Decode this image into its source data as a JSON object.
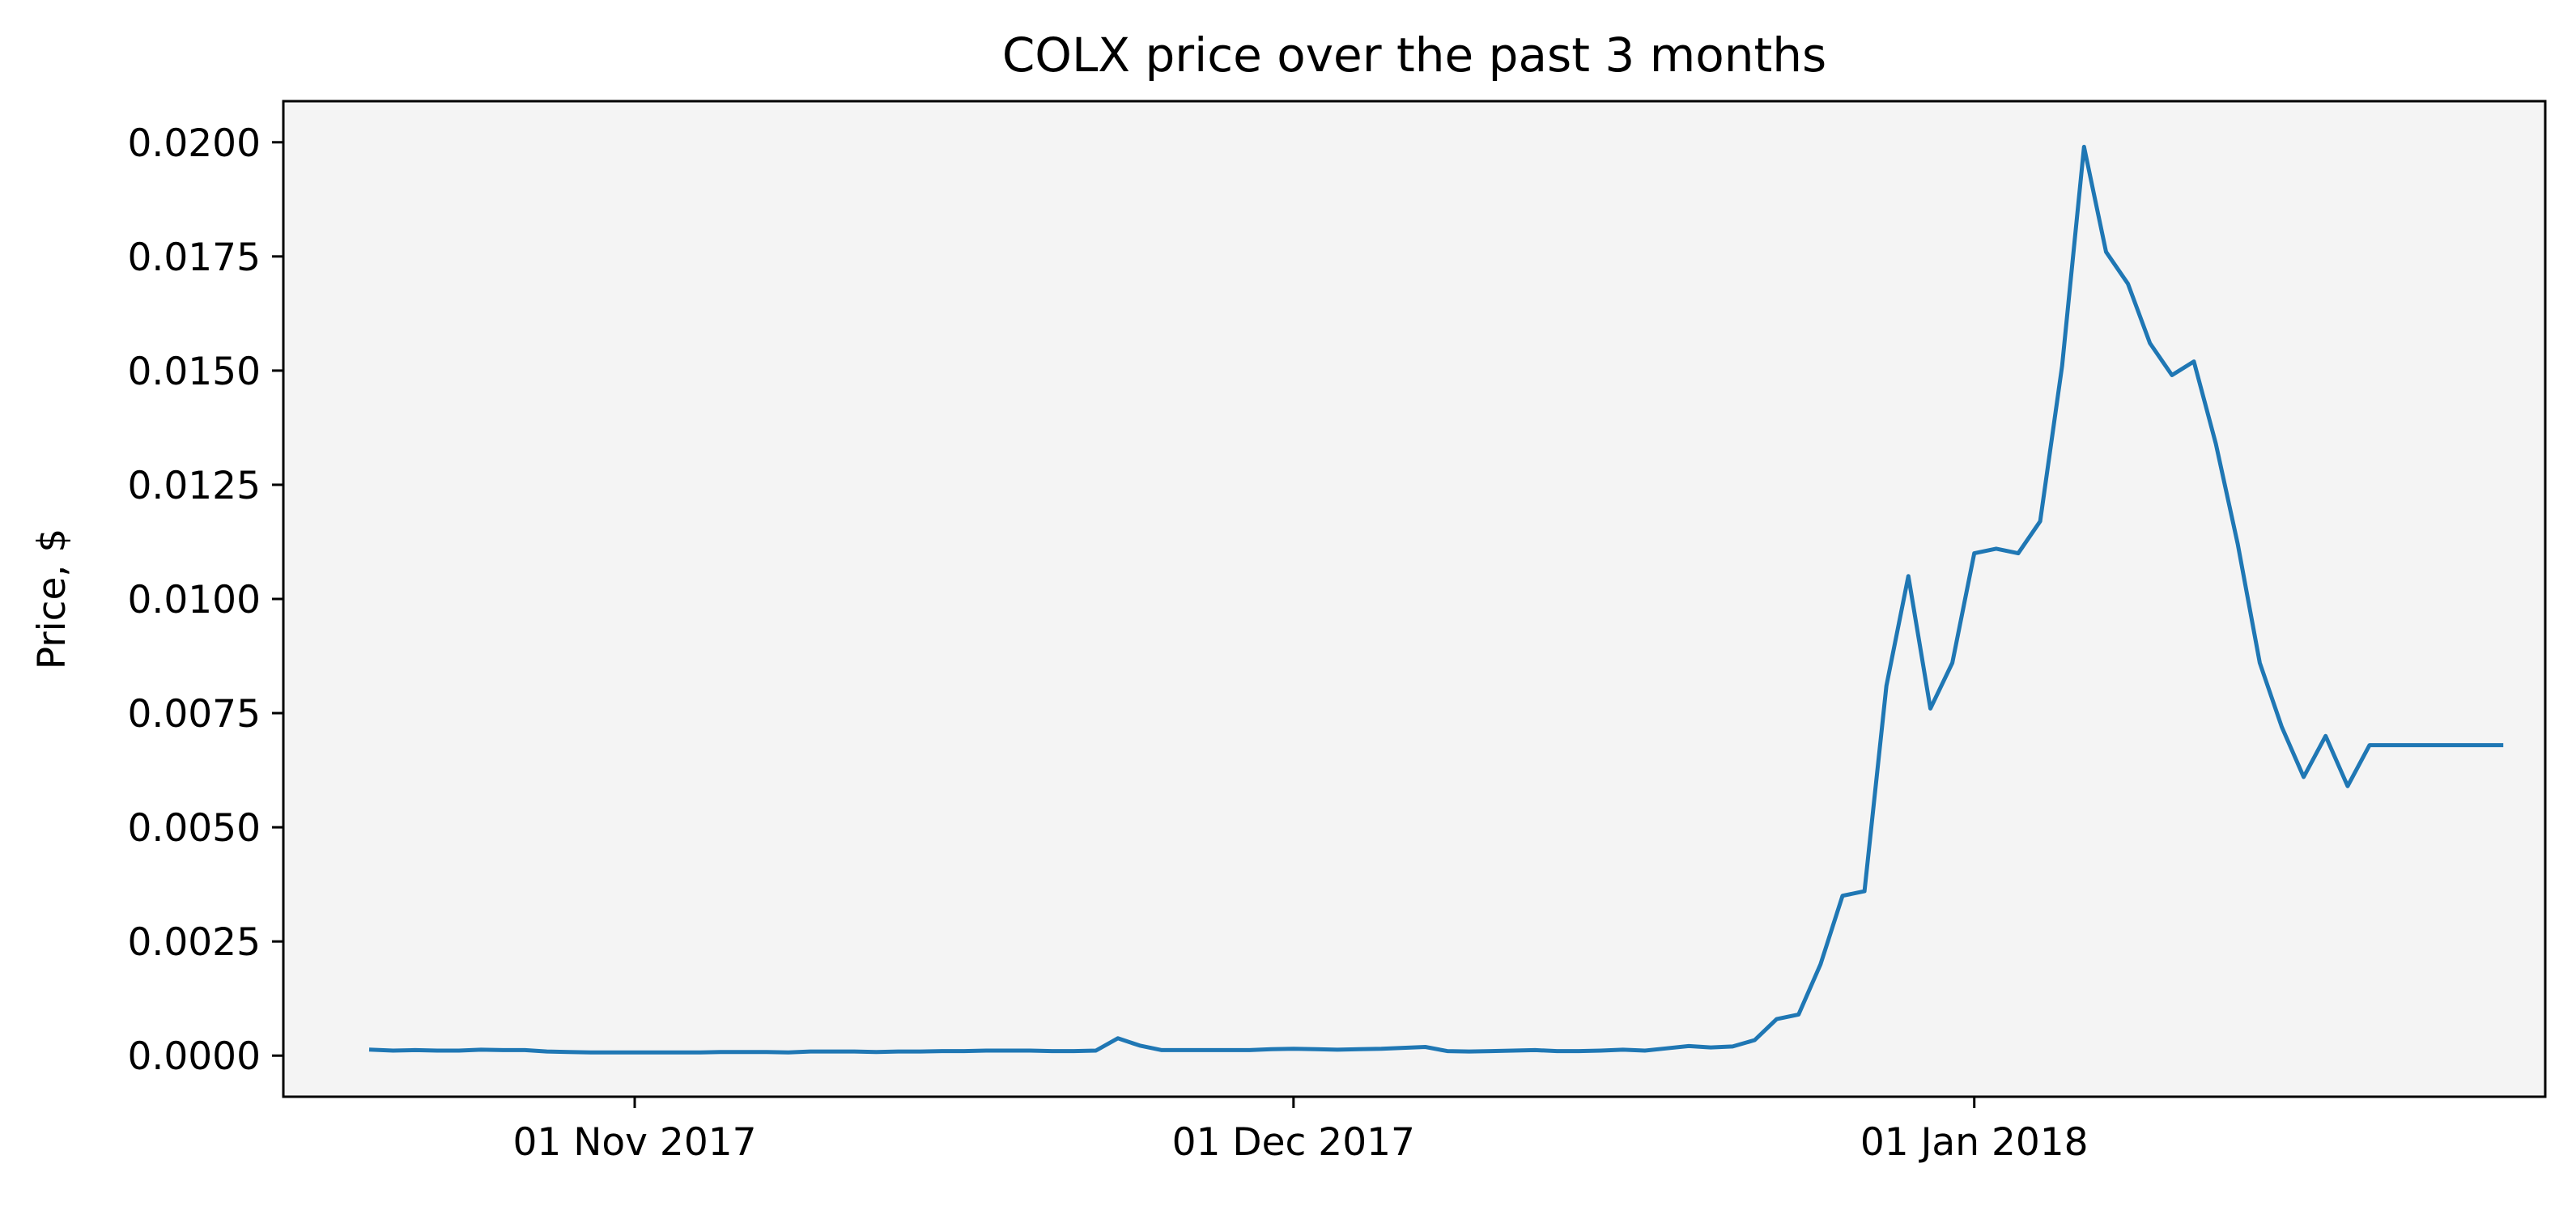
{
  "chart_data": {
    "type": "line",
    "title": "COLX price over the past 3 months",
    "xlabel": "",
    "ylabel": "Price, $",
    "x_tick_labels": [
      "01 Nov 2017",
      "01 Dec 2017",
      "01 Jan 2018"
    ],
    "y_tick_labels": [
      "0.0000",
      "0.0025",
      "0.0050",
      "0.0075",
      "0.0100",
      "0.0125",
      "0.0150",
      "0.0175",
      "0.0200"
    ],
    "ylim": [
      -0.0009,
      0.0209
    ],
    "xlim": [
      "2017-10-16",
      "2018-01-27"
    ],
    "grid": false,
    "legend": false,
    "colors": {
      "line": "#1f77b4",
      "axes_bg": "#f4f4f4"
    },
    "x": [
      "2017-10-20",
      "2017-10-21",
      "2017-10-22",
      "2017-10-23",
      "2017-10-24",
      "2017-10-25",
      "2017-10-26",
      "2017-10-27",
      "2017-10-28",
      "2017-10-29",
      "2017-10-30",
      "2017-10-31",
      "2017-11-01",
      "2017-11-02",
      "2017-11-03",
      "2017-11-04",
      "2017-11-05",
      "2017-11-06",
      "2017-11-07",
      "2017-11-08",
      "2017-11-09",
      "2017-11-10",
      "2017-11-11",
      "2017-11-12",
      "2017-11-13",
      "2017-11-14",
      "2017-11-15",
      "2017-11-16",
      "2017-11-17",
      "2017-11-18",
      "2017-11-19",
      "2017-11-20",
      "2017-11-21",
      "2017-11-22",
      "2017-11-23",
      "2017-11-24",
      "2017-11-25",
      "2017-11-26",
      "2017-11-27",
      "2017-11-28",
      "2017-11-29",
      "2017-11-30",
      "2017-12-01",
      "2017-12-02",
      "2017-12-03",
      "2017-12-04",
      "2017-12-05",
      "2017-12-06",
      "2017-12-07",
      "2017-12-08",
      "2017-12-09",
      "2017-12-10",
      "2017-12-11",
      "2017-12-12",
      "2017-12-13",
      "2017-12-14",
      "2017-12-15",
      "2017-12-16",
      "2017-12-17",
      "2017-12-18",
      "2017-12-19",
      "2017-12-20",
      "2017-12-21",
      "2017-12-22",
      "2017-12-23",
      "2017-12-24",
      "2017-12-25",
      "2017-12-26",
      "2017-12-27",
      "2017-12-28",
      "2017-12-29",
      "2017-12-30",
      "2017-12-31",
      "2018-01-01",
      "2018-01-02",
      "2018-01-03",
      "2018-01-04",
      "2018-01-05",
      "2018-01-06",
      "2018-01-07",
      "2018-01-08",
      "2018-01-09",
      "2018-01-10",
      "2018-01-11",
      "2018-01-12",
      "2018-01-13",
      "2018-01-14",
      "2018-01-15",
      "2018-01-16",
      "2018-01-17",
      "2018-01-18",
      "2018-01-19",
      "2018-01-20",
      "2018-01-21",
      "2018-01-22",
      "2018-01-23",
      "2018-01-24",
      "2018-01-25"
    ],
    "series": [
      {
        "values": [
          0.00013,
          0.00011,
          0.00012,
          0.00011,
          0.00011,
          0.00013,
          0.00012,
          0.00012,
          9e-05,
          8e-05,
          7e-05,
          7e-05,
          7e-05,
          7e-05,
          7e-05,
          7e-05,
          8e-05,
          8e-05,
          8e-05,
          7e-05,
          9e-05,
          9e-05,
          9e-05,
          8e-05,
          9e-05,
          9e-05,
          0.0001,
          0.0001,
          0.00011,
          0.00011,
          0.00011,
          0.0001,
          0.0001,
          0.00011,
          0.00038,
          0.00022,
          0.00012,
          0.00012,
          0.00012,
          0.00012,
          0.00012,
          0.00014,
          0.00015,
          0.00014,
          0.00013,
          0.00014,
          0.00015,
          0.00017,
          0.00019,
          0.0001,
          9e-05,
          0.0001,
          0.00011,
          0.00012,
          0.0001,
          0.0001,
          0.00011,
          0.00013,
          0.00011,
          0.00016,
          0.00021,
          0.00018,
          0.0002,
          0.00034,
          0.0008,
          0.0009,
          0.002,
          0.0035,
          0.0036,
          0.0081,
          0.0105,
          0.0076,
          0.0086,
          0.011,
          0.0111,
          0.011,
          0.0117,
          0.0151,
          0.0199,
          0.0176,
          0.0169,
          0.0156,
          0.0149,
          0.0152,
          0.0134,
          0.0112,
          0.0086,
          0.0072,
          0.0061,
          0.007,
          0.0059,
          0.0068,
          0.0068,
          0.0068,
          0.0068,
          0.0068,
          0.0068,
          0.0068
        ]
      }
    ]
  }
}
